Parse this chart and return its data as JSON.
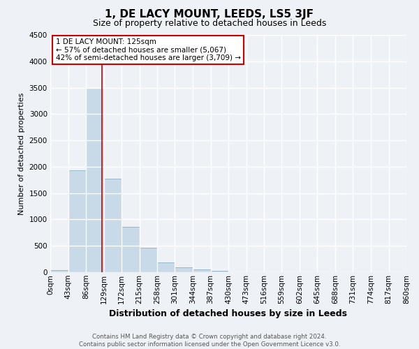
{
  "title": "1, DE LACY MOUNT, LEEDS, LS5 3JF",
  "subtitle": "Size of property relative to detached houses in Leeds",
  "xlabel": "Distribution of detached houses by size in Leeds",
  "ylabel": "Number of detached properties",
  "bar_values": [
    40,
    1930,
    3500,
    1770,
    860,
    460,
    180,
    90,
    50,
    30,
    0,
    0,
    0,
    0,
    0,
    0,
    0,
    0,
    0,
    0
  ],
  "bin_labels": [
    "0sqm",
    "43sqm",
    "86sqm",
    "129sqm",
    "172sqm",
    "215sqm",
    "258sqm",
    "301sqm",
    "344sqm",
    "387sqm",
    "430sqm",
    "473sqm",
    "516sqm",
    "559sqm",
    "602sqm",
    "645sqm",
    "688sqm",
    "731sqm",
    "774sqm",
    "817sqm",
    "860sqm"
  ],
  "bin_edges": [
    0,
    43,
    86,
    129,
    172,
    215,
    258,
    301,
    344,
    387,
    430,
    473,
    516,
    559,
    602,
    645,
    688,
    731,
    774,
    817,
    860
  ],
  "bar_color": "#c8d9e8",
  "bar_edge_color": "#9ab8cc",
  "property_line_x": 125,
  "property_line_color": "#cc0000",
  "ylim": [
    0,
    4500
  ],
  "yticks": [
    0,
    500,
    1000,
    1500,
    2000,
    2500,
    3000,
    3500,
    4000,
    4500
  ],
  "annotation_title": "1 DE LACY MOUNT: 125sqm",
  "annotation_line1": "← 57% of detached houses are smaller (5,067)",
  "annotation_line2": "42% of semi-detached houses are larger (3,709) →",
  "annotation_box_color": "#ffffff",
  "annotation_box_edge": "#cc0000",
  "footer_line1": "Contains HM Land Registry data © Crown copyright and database right 2024.",
  "footer_line2": "Contains public sector information licensed under the Open Government Licence v3.0.",
  "background_color": "#eef2f7",
  "grid_color": "#ffffff",
  "title_fontsize": 11,
  "subtitle_fontsize": 9,
  "xlabel_fontsize": 9,
  "ylabel_fontsize": 8,
  "tick_fontsize": 7.5,
  "annotation_fontsize": 7.5,
  "footer_fontsize": 6.2
}
